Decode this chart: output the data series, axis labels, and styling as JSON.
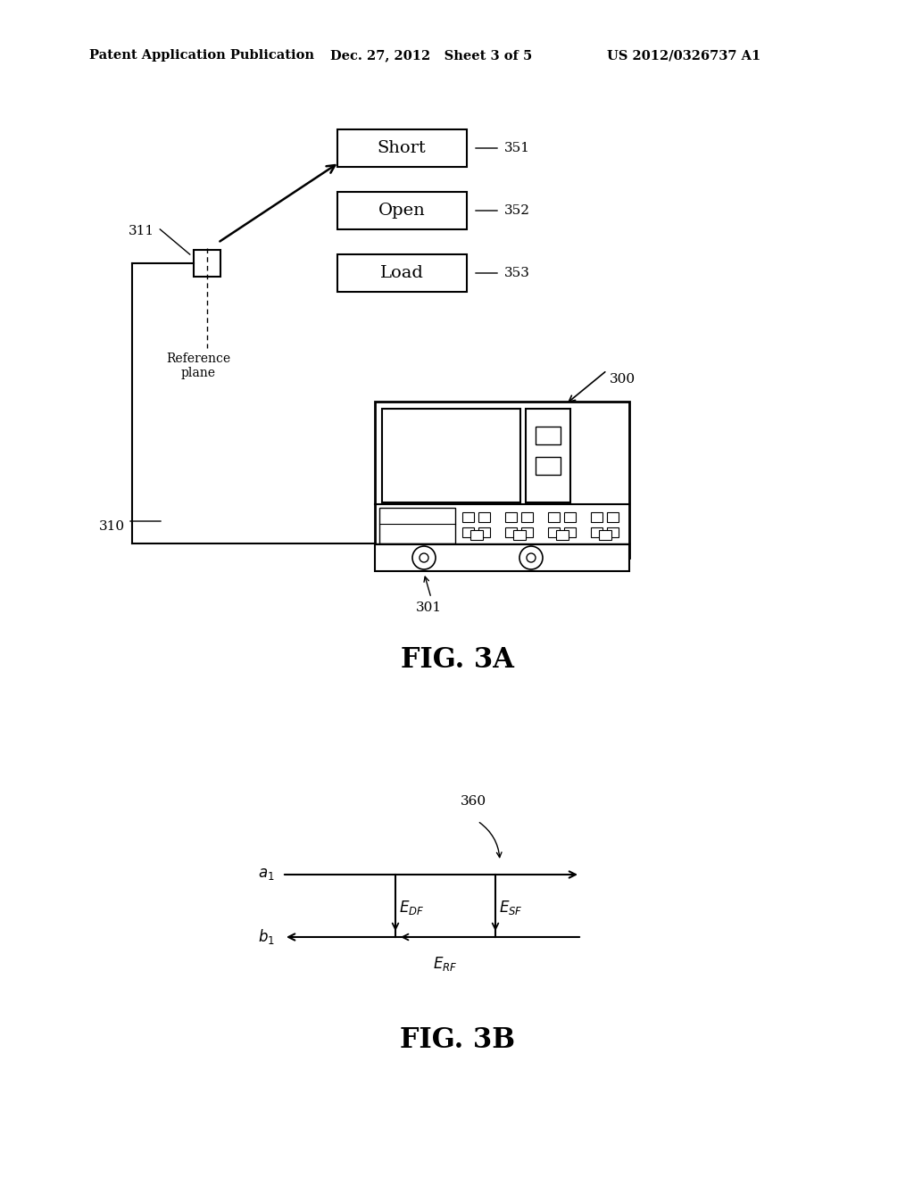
{
  "bg_color": "#ffffff",
  "header_left": "Patent Application Publication",
  "header_mid": "Dec. 27, 2012   Sheet 3 of 5",
  "header_right": "US 2012/0326737 A1",
  "fig3a_label": "FIG. 3A",
  "fig3b_label": "FIG. 3B",
  "box_labels": [
    "Short",
    "Open",
    "Load"
  ],
  "box_numbers": [
    "351",
    "352",
    "353"
  ],
  "label_310": "310",
  "label_311": "311",
  "label_300": "300",
  "label_301": "301",
  "label_360": "360"
}
